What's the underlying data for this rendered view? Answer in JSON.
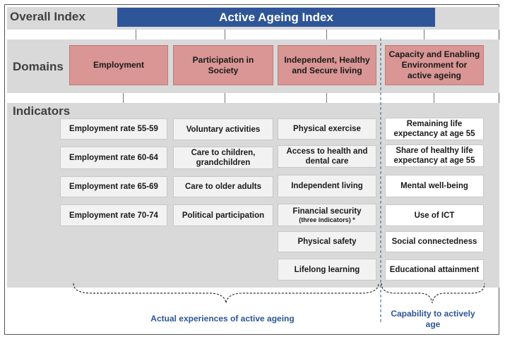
{
  "overall": {
    "label": "Overall Index",
    "title": "Active Ageing Index"
  },
  "domains": {
    "label": "Domains",
    "items": [
      "Employment",
      "Participation in Society",
      "Independent, Healthy and Secure living",
      "Capacity and Enabling Environment for active ageing"
    ]
  },
  "indicators": {
    "label": "Indicators",
    "employment": [
      "Employment rate 55-59",
      "Employment rate 60-64",
      "Employment rate 65-69",
      "Employment rate 70-74"
    ],
    "participation": [
      "Voluntary activities",
      "Care to children, grandchildren",
      "Care to older adults",
      "Political participation"
    ],
    "independent": [
      "Physical exercise",
      "Access to health and dental care",
      "Independent living",
      "Financial security",
      "(three indicators) *",
      "Physical safety",
      "Lifelong learning"
    ],
    "capacity": [
      "Remaining life expectancy at age 55",
      "Share of healthy life expectancy at age 55",
      "Mental well-being",
      "Use of ICT",
      "Social connectedness",
      "Educational attainment"
    ]
  },
  "footer": {
    "actual": "Actual experiences of active ageing",
    "capability": "Capability to actively age"
  },
  "colors": {
    "title_bg": "#2e5597",
    "domain_bg": "#d99694",
    "band_bg": "#d9d9d9",
    "footer_text": "#2e5597"
  }
}
